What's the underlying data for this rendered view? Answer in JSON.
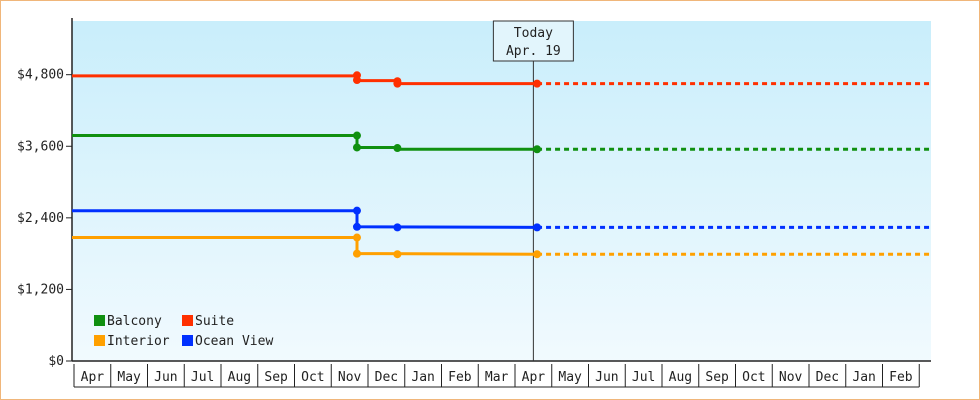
{
  "chart_data": {
    "type": "line",
    "x": [
      "Apr",
      "May",
      "Jun",
      "Jul",
      "Aug",
      "Sep",
      "Oct",
      "Nov",
      "Dec",
      "Jan",
      "Feb",
      "Mar",
      "Apr",
      "May",
      "Jun",
      "Jul",
      "Aug",
      "Sep",
      "Oct",
      "Nov",
      "Dec",
      "Jan",
      "Feb"
    ],
    "yticks": [
      "$0",
      "$1,200",
      "$2,400",
      "$3,600",
      "$4,800"
    ],
    "ylim": [
      0,
      5700
    ],
    "step": true,
    "today": {
      "line1": "Today",
      "line2": "Apr. 19",
      "x_index": 12
    },
    "legend_position": "bottom-left",
    "series": [
      {
        "name": "Balcony",
        "color": "#109010",
        "points": [
          [
            0,
            3780
          ],
          [
            7.2,
            3780
          ],
          [
            7.2,
            3580
          ],
          [
            8.3,
            3580
          ],
          [
            8.3,
            3550
          ],
          [
            12.1,
            3550
          ]
        ],
        "markers": [
          [
            7.2,
            3780
          ],
          [
            7.2,
            3580
          ],
          [
            8.3,
            3570
          ],
          [
            12.1,
            3550
          ]
        ],
        "projected_to": 23
      },
      {
        "name": "Suite",
        "color": "#ff3000",
        "points": [
          [
            0,
            4780
          ],
          [
            7.2,
            4780
          ],
          [
            7.2,
            4700
          ],
          [
            8.3,
            4700
          ],
          [
            8.3,
            4650
          ],
          [
            12.1,
            4650
          ]
        ],
        "markers": [
          [
            7.2,
            4790
          ],
          [
            7.2,
            4710
          ],
          [
            8.3,
            4690
          ],
          [
            8.3,
            4650
          ],
          [
            12.1,
            4650
          ]
        ],
        "projected_to": 23
      },
      {
        "name": "Interior",
        "color": "#ffa000",
        "points": [
          [
            0,
            2070
          ],
          [
            7.2,
            2070
          ],
          [
            7.2,
            1800
          ],
          [
            12.1,
            1790
          ]
        ],
        "markers": [
          [
            7.2,
            2070
          ],
          [
            7.2,
            1800
          ],
          [
            8.3,
            1790
          ],
          [
            12.1,
            1790
          ]
        ],
        "projected_to": 23
      },
      {
        "name": "Ocean View",
        "color": "#0030ff",
        "points": [
          [
            0,
            2520
          ],
          [
            7.2,
            2520
          ],
          [
            7.2,
            2250
          ],
          [
            12.1,
            2240
          ]
        ],
        "markers": [
          [
            7.2,
            2520
          ],
          [
            7.2,
            2250
          ],
          [
            8.3,
            2240
          ],
          [
            12.1,
            2240
          ]
        ],
        "projected_to": 23
      }
    ],
    "legend": [
      {
        "label": "Balcony",
        "color": "#109010"
      },
      {
        "label": "Suite",
        "color": "#ff3000"
      },
      {
        "label": "Interior",
        "color": "#ffa000"
      },
      {
        "label": "Ocean View",
        "color": "#0030ff"
      }
    ]
  }
}
